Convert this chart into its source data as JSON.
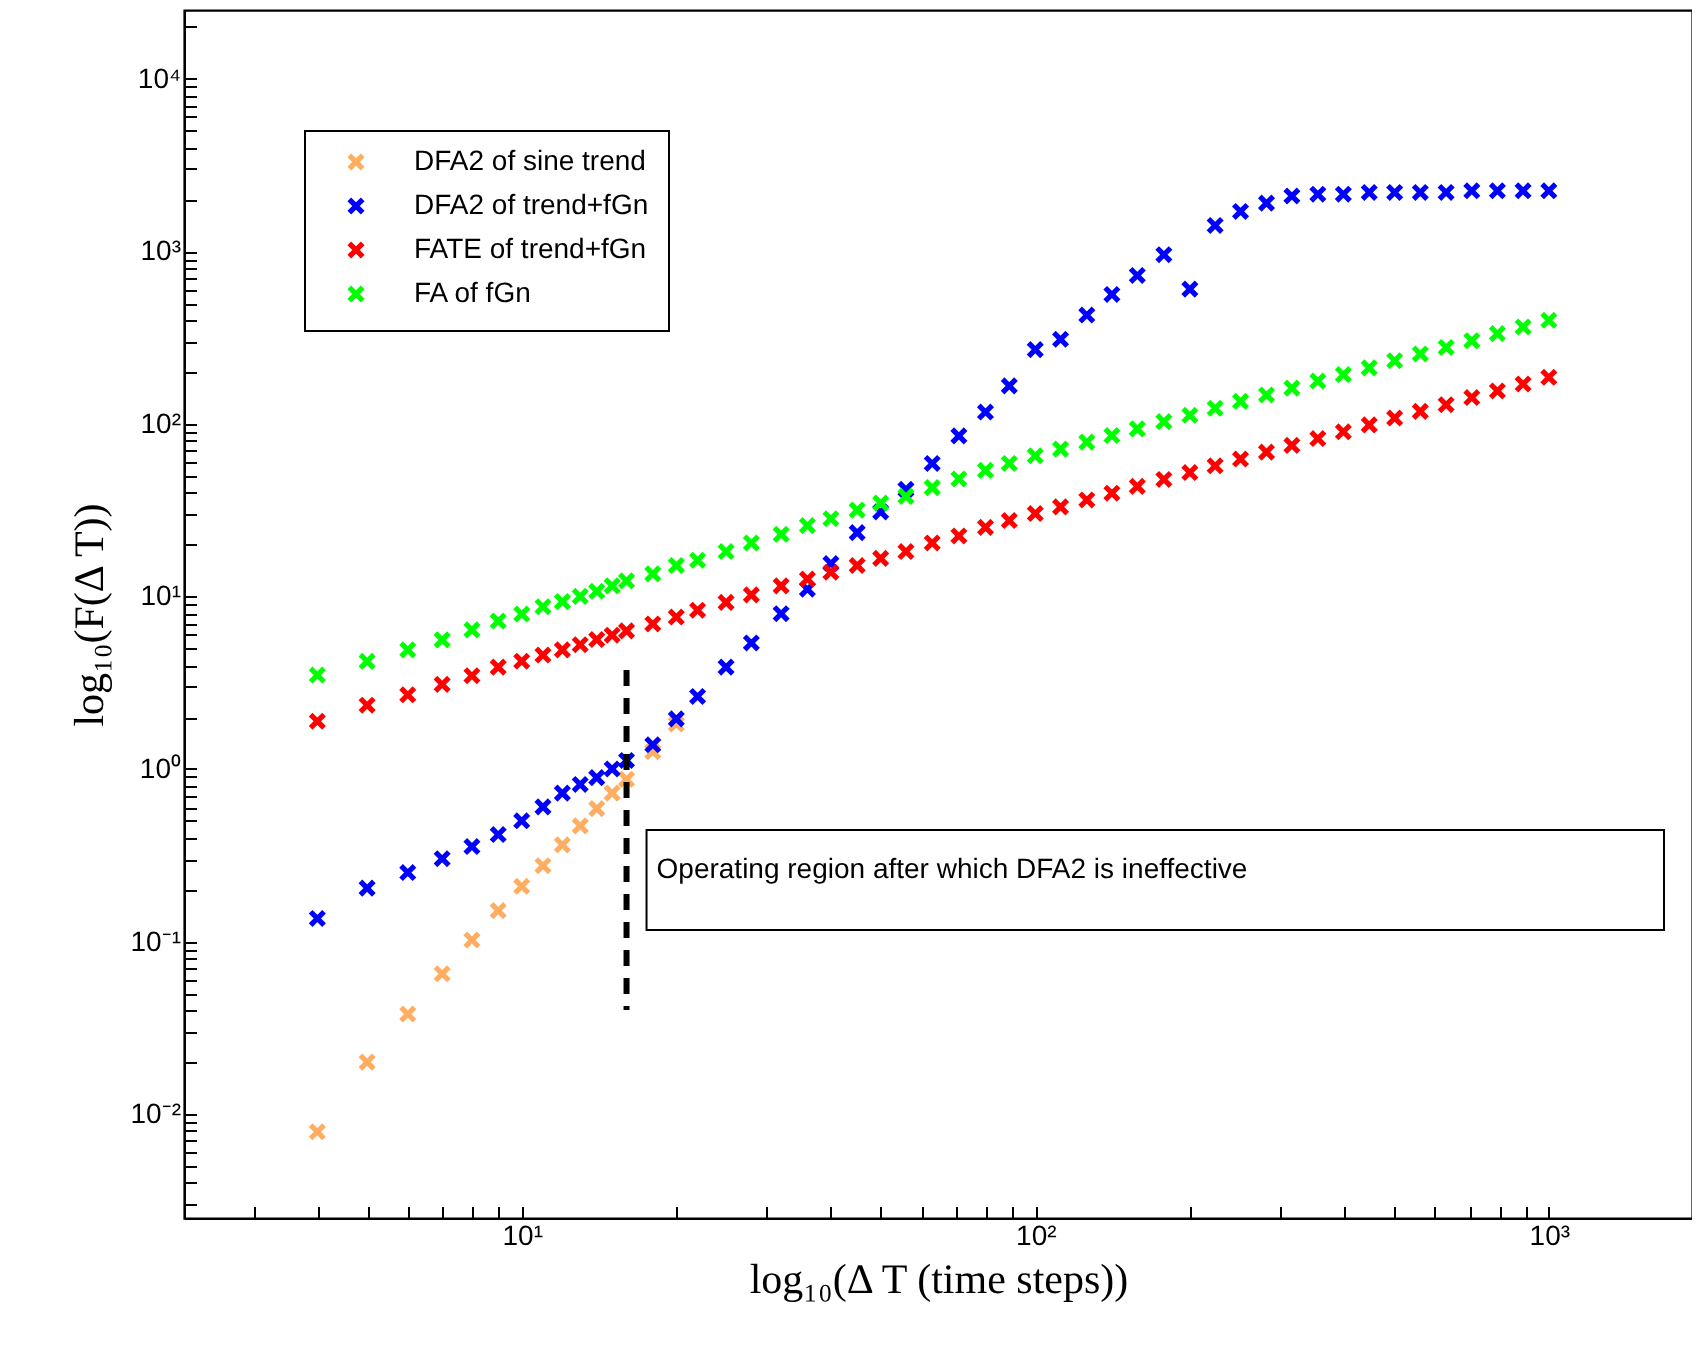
{
  "chart_data": {
    "type": "scatter",
    "xlabel": "log₁₀(Δ T (time steps))",
    "ylabel": "log₁₀(F(Δ T))",
    "x": [
      4,
      5,
      6,
      7,
      8,
      9,
      10,
      11,
      12,
      13,
      14,
      15,
      16,
      18,
      20,
      22,
      25,
      28,
      32,
      36,
      40,
      45,
      50,
      56,
      63,
      71,
      80,
      89,
      100,
      112,
      126,
      141,
      158,
      178,
      200,
      224,
      251,
      282,
      316,
      355,
      398,
      447,
      501,
      562,
      631,
      708,
      794,
      891,
      1000
    ],
    "series": [
      {
        "name": "DFA2 of sine trend",
        "color": "#ffad60",
        "values": [
          0.0079,
          0.02,
          0.038,
          0.065,
          0.102,
          0.151,
          0.209,
          0.275,
          0.363,
          0.468,
          0.589,
          0.724,
          0.871,
          1.26,
          1.82,
          null,
          null,
          null,
          null,
          null,
          null,
          null,
          null,
          null,
          null,
          null,
          null,
          null,
          null,
          null,
          null,
          null,
          null,
          null,
          null,
          null,
          null,
          null,
          null,
          null,
          null,
          null,
          null,
          null,
          null,
          null,
          null,
          null,
          null
        ]
      },
      {
        "name": "DFA2 of trend+fGn",
        "color": "#0000ff",
        "values": [
          0.136,
          0.204,
          0.251,
          0.302,
          0.355,
          0.417,
          0.501,
          0.603,
          0.724,
          0.813,
          0.891,
          1.0,
          1.12,
          1.38,
          1.95,
          2.63,
          3.89,
          5.37,
          7.94,
          11.0,
          15.5,
          23.4,
          30.9,
          41.7,
          58.9,
          85.1,
          117,
          166,
          269,
          309,
          427,
          562,
          724,
          955,
          603,
          1410,
          1700,
          1900,
          2090,
          2140,
          2140,
          2190,
          2190,
          2190,
          2190,
          2240,
          2240,
          2240,
          2240
        ]
      },
      {
        "name": "FATE of trend+fGn",
        "color": "#ff0000",
        "values": [
          1.89,
          2.34,
          2.69,
          3.09,
          3.47,
          3.89,
          4.21,
          4.57,
          4.9,
          5.25,
          5.62,
          5.96,
          6.31,
          6.92,
          7.59,
          8.32,
          9.23,
          10.2,
          11.5,
          12.6,
          13.8,
          15.1,
          16.6,
          18.2,
          20.4,
          22.4,
          25.1,
          27.5,
          30.2,
          33.0,
          36.2,
          39.6,
          43.4,
          47.6,
          52.2,
          57.1,
          62.5,
          68.5,
          75.0,
          82.2,
          89.9,
          98.6,
          108,
          118,
          129,
          142,
          155,
          170,
          186
        ]
      },
      {
        "name": "FA of fGn",
        "color": "#00ff00",
        "values": [
          3.5,
          4.2,
          4.9,
          5.6,
          6.4,
          7.2,
          7.9,
          8.71,
          9.33,
          10,
          10.7,
          11.5,
          12.3,
          13.5,
          15.1,
          16.2,
          18.2,
          20.4,
          22.9,
          25.7,
          28.2,
          31.6,
          34.7,
          38.0,
          42.7,
          47.9,
          53.7,
          58.9,
          65.3,
          71.3,
          78.3,
          85.5,
          93.5,
          103,
          112,
          123,
          135,
          147,
          161,
          177,
          193,
          211,
          232,
          254,
          277,
          303,
          333,
          364,
          398
        ]
      }
    ],
    "log": "xy",
    "xlim": [
      2.2,
      1900
    ],
    "ylim": [
      0.0025,
      25000
    ],
    "xticks": [
      {
        "value": 3,
        "label": null
      },
      {
        "value": 4,
        "label": null
      },
      {
        "value": 5,
        "label": null
      },
      {
        "value": 6,
        "label": null
      },
      {
        "value": 7,
        "label": null
      },
      {
        "value": 8,
        "label": null
      },
      {
        "value": 9,
        "label": null
      },
      {
        "value": 10,
        "label": "10¹"
      },
      {
        "value": 20,
        "label": null
      },
      {
        "value": 30,
        "label": null
      },
      {
        "value": 40,
        "label": null
      },
      {
        "value": 50,
        "label": null
      },
      {
        "value": 60,
        "label": null
      },
      {
        "value": 70,
        "label": null
      },
      {
        "value": 80,
        "label": null
      },
      {
        "value": 90,
        "label": null
      },
      {
        "value": 100,
        "label": "10²"
      },
      {
        "value": 200,
        "label": null
      },
      {
        "value": 300,
        "label": null
      },
      {
        "value": 400,
        "label": null
      },
      {
        "value": 500,
        "label": null
      },
      {
        "value": 600,
        "label": null
      },
      {
        "value": 700,
        "label": null
      },
      {
        "value": 800,
        "label": null
      },
      {
        "value": 900,
        "label": null
      },
      {
        "value": 1000,
        "label": "10³"
      }
    ],
    "yticks": [
      {
        "value": 0.003,
        "label": null
      },
      {
        "value": 0.004,
        "label": null
      },
      {
        "value": 0.005,
        "label": null
      },
      {
        "value": 0.006,
        "label": null
      },
      {
        "value": 0.007,
        "label": null
      },
      {
        "value": 0.008,
        "label": null
      },
      {
        "value": 0.009,
        "label": null
      },
      {
        "value": 0.01,
        "label": "10⁻²"
      },
      {
        "value": 0.02,
        "label": null
      },
      {
        "value": 0.03,
        "label": null
      },
      {
        "value": 0.04,
        "label": null
      },
      {
        "value": 0.05,
        "label": null
      },
      {
        "value": 0.06,
        "label": null
      },
      {
        "value": 0.07,
        "label": null
      },
      {
        "value": 0.08,
        "label": null
      },
      {
        "value": 0.09,
        "label": null
      },
      {
        "value": 0.1,
        "label": "10⁻¹"
      },
      {
        "value": 0.2,
        "label": null
      },
      {
        "value": 0.3,
        "label": null
      },
      {
        "value": 0.4,
        "label": null
      },
      {
        "value": 0.5,
        "label": null
      },
      {
        "value": 0.6,
        "label": null
      },
      {
        "value": 0.7,
        "label": null
      },
      {
        "value": 0.8,
        "label": null
      },
      {
        "value": 0.9,
        "label": null
      },
      {
        "value": 1,
        "label": "10⁰"
      },
      {
        "value": 2,
        "label": null
      },
      {
        "value": 3,
        "label": null
      },
      {
        "value": 4,
        "label": null
      },
      {
        "value": 5,
        "label": null
      },
      {
        "value": 6,
        "label": null
      },
      {
        "value": 7,
        "label": null
      },
      {
        "value": 8,
        "label": null
      },
      {
        "value": 9,
        "label": null
      },
      {
        "value": 10,
        "label": "10¹"
      },
      {
        "value": 20,
        "label": null
      },
      {
        "value": 30,
        "label": null
      },
      {
        "value": 40,
        "label": null
      },
      {
        "value": 50,
        "label": null
      },
      {
        "value": 60,
        "label": null
      },
      {
        "value": 70,
        "label": null
      },
      {
        "value": 80,
        "label": null
      },
      {
        "value": 90,
        "label": null
      },
      {
        "value": 100,
        "label": "10²"
      },
      {
        "value": 200,
        "label": null
      },
      {
        "value": 300,
        "label": null
      },
      {
        "value": 400,
        "label": null
      },
      {
        "value": 500,
        "label": null
      },
      {
        "value": 600,
        "label": null
      },
      {
        "value": 700,
        "label": null
      },
      {
        "value": 800,
        "label": null
      },
      {
        "value": 900,
        "label": null
      },
      {
        "value": 1000,
        "label": "10³"
      },
      {
        "value": 2000,
        "label": null
      },
      {
        "value": 3000,
        "label": null
      },
      {
        "value": 4000,
        "label": null
      },
      {
        "value": 5000,
        "label": null
      },
      {
        "value": 6000,
        "label": null
      },
      {
        "value": 7000,
        "label": null
      },
      {
        "value": 8000,
        "label": null
      },
      {
        "value": 9000,
        "label": null
      },
      {
        "value": 10000,
        "label": "10⁴"
      },
      {
        "value": 20000,
        "label": null
      }
    ],
    "grid": false,
    "legend": "top left",
    "marker": "cross",
    "ref_lines": [
      {
        "axis": "x",
        "value": 16,
        "label": "Operating region after which DFA2 is ineffective",
        "color": "#000000",
        "line_style": "dashed"
      }
    ]
  }
}
